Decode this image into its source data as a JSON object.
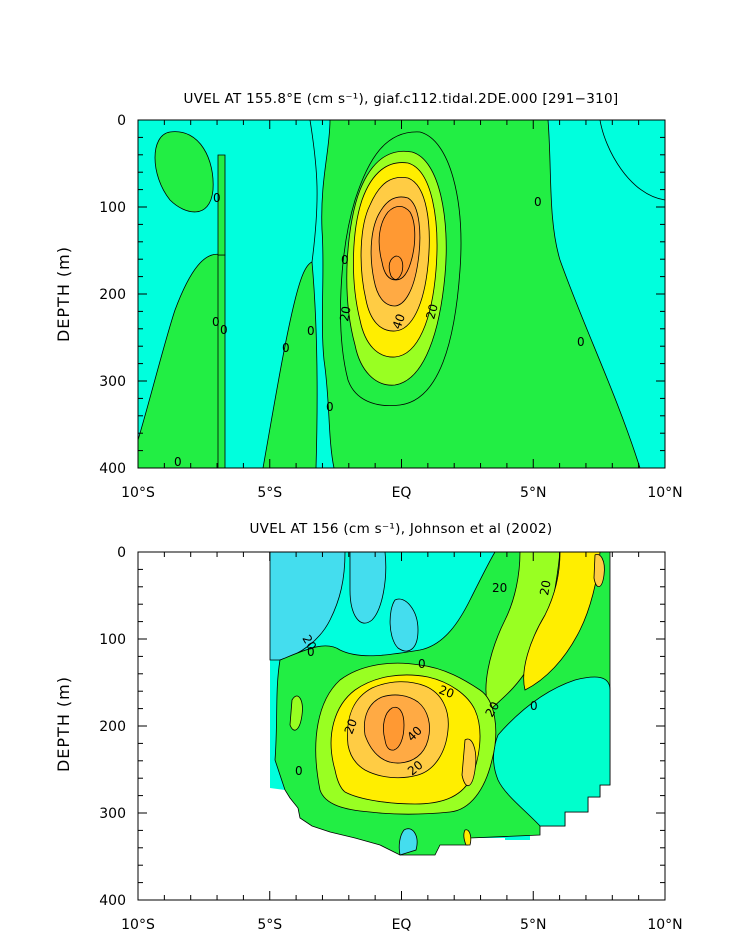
{
  "chart_data": [
    {
      "type": "contour",
      "title": "UVEL AT 155.8°E (cm s⁻¹), giaf.c112.tidal.2DE.000 [291−310]",
      "ylabel": "DEPTH (m)",
      "xlabel": "",
      "x_ticks": [
        "10°S",
        "5°S",
        "EQ",
        "5°N",
        "10°N"
      ],
      "y_ticks": [
        "0",
        "100",
        "200",
        "300",
        "400"
      ],
      "xlim": [
        -10,
        10
      ],
      "ylim": [
        400,
        0
      ],
      "contour_interval": 10,
      "contour_labels": [
        {
          "text": "0",
          "lat": -2.9,
          "depth": 88
        },
        {
          "text": "0",
          "lat": 5.3,
          "depth": 95
        },
        {
          "text": "0",
          "lat": -3.1,
          "depth": 230
        },
        {
          "text": "0",
          "lat": -2.8,
          "depth": 240
        },
        {
          "text": "0",
          "lat": -5.7,
          "depth": 260
        },
        {
          "text": "0",
          "lat": -6.6,
          "depth": 242
        },
        {
          "text": "0",
          "lat": -2.0,
          "depth": 160
        },
        {
          "text": "0",
          "lat": 7.0,
          "depth": 253
        },
        {
          "text": "0",
          "lat": -1.4,
          "depth": 327
        },
        {
          "text": "0",
          "lat": -8.3,
          "depth": 390
        },
        {
          "text": "20",
          "lat": -1.5,
          "depth": 225
        },
        {
          "text": "40",
          "lat": 0.3,
          "depth": 235
        },
        {
          "text": "20",
          "lat": 1.4,
          "depth": 225
        }
      ],
      "max_value_estimate": 60,
      "core": {
        "lat": 0.0,
        "depth": 175
      }
    },
    {
      "type": "contour",
      "title": "UVEL AT 156 (cm s⁻¹), Johnson et al (2002)",
      "ylabel": "DEPTH (m)",
      "xlabel": "",
      "x_ticks": [
        "10°S",
        "5°S",
        "EQ",
        "5°N",
        "10°N"
      ],
      "y_ticks": [
        "0",
        "100",
        "200",
        "300",
        "400"
      ],
      "xlim": [
        -10,
        10
      ],
      "ylim": [
        400,
        0
      ],
      "contour_interval": 10,
      "data_extent_lat": [
        -5,
        8
      ],
      "contour_labels": [
        {
          "text": "20",
          "lat": 3.3,
          "depth": 40
        },
        {
          "text": "20",
          "lat": 5.5,
          "depth": 40
        },
        {
          "text": "20",
          "lat": -4.7,
          "depth": 102
        },
        {
          "text": "0",
          "lat": -4.9,
          "depth": 117
        },
        {
          "text": "0",
          "lat": 1.0,
          "depth": 130
        },
        {
          "text": "20",
          "lat": 0.7,
          "depth": 160
        },
        {
          "text": "20",
          "lat": -2.3,
          "depth": 200
        },
        {
          "text": "40",
          "lat": 0.5,
          "depth": 220
        },
        {
          "text": "20",
          "lat": -0.3,
          "depth": 250
        },
        {
          "text": "20",
          "lat": 3.7,
          "depth": 185
        },
        {
          "text": "0",
          "lat": 5.2,
          "depth": 178
        },
        {
          "text": "0",
          "lat": -4.6,
          "depth": 255
        }
      ],
      "max_value_estimate": 50,
      "core": {
        "lat": -0.2,
        "depth": 205
      }
    }
  ]
}
